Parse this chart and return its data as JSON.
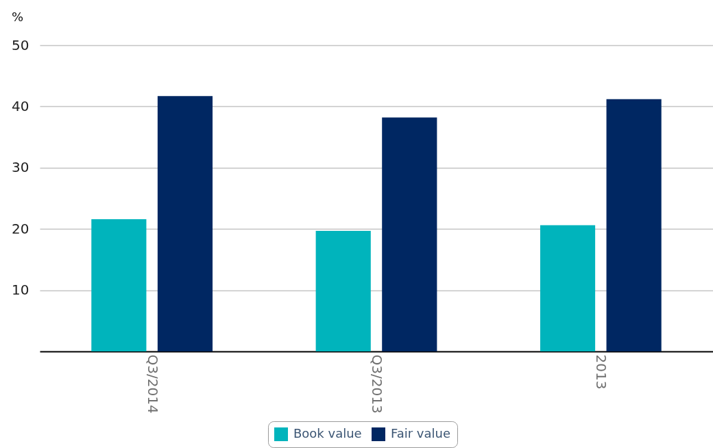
{
  "chart_data": {
    "type": "bar",
    "categories": [
      "Q3/2014",
      "Q3/2013",
      "2013"
    ],
    "series": [
      {
        "name": "Book value",
        "color": "#00b4bc",
        "values": [
          21.6,
          19.7,
          20.6
        ]
      },
      {
        "name": "Fair value",
        "color": "#002762",
        "values": [
          41.7,
          38.2,
          41.2
        ]
      }
    ],
    "ylabel": "%",
    "ylim": [
      0,
      50
    ],
    "yticks": [
      10,
      20,
      30,
      40,
      50
    ],
    "grid": "y",
    "legend": "bottom"
  }
}
